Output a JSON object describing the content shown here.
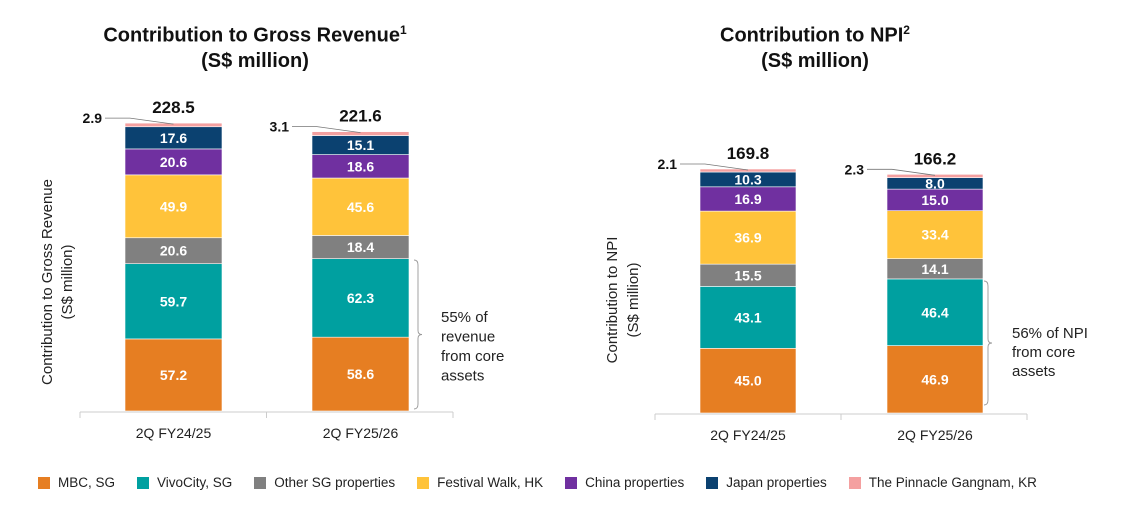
{
  "chart_data": [
    {
      "type": "bar",
      "stacked": true,
      "title": "Contribution to Gross Revenue",
      "title_footnote": "1",
      "subtitle": "(S$ million)",
      "ylabel": [
        "Contribution to Gross Revenue",
        "(S$ million)"
      ],
      "categories": [
        "2Q FY24/25",
        "2Q FY25/26"
      ],
      "totals": [
        "228.5",
        "221.6"
      ],
      "series": [
        {
          "name": "MBC, SG",
          "values": [
            57.2,
            58.6
          ]
        },
        {
          "name": "VivoCity, SG",
          "values": [
            59.7,
            62.3
          ]
        },
        {
          "name": "Other SG properties",
          "values": [
            20.6,
            18.4
          ]
        },
        {
          "name": "Festival Walk, HK",
          "values": [
            49.9,
            45.6
          ]
        },
        {
          "name": "China properties",
          "values": [
            20.6,
            18.6
          ]
        },
        {
          "name": "Japan properties",
          "values": [
            17.6,
            15.1
          ]
        },
        {
          "name": "The Pinnacle Gangnam, KR",
          "values": [
            2.9,
            3.1
          ]
        }
      ],
      "annotation": [
        "55% of",
        "revenue",
        "from core",
        "assets"
      ],
      "grid": false
    },
    {
      "type": "bar",
      "stacked": true,
      "title": "Contribution to NPI",
      "title_footnote": "2",
      "subtitle": "(S$ million)",
      "ylabel": [
        "Contribution to NPI",
        "(S$ million)"
      ],
      "categories": [
        "2Q FY24/25",
        "2Q FY25/26"
      ],
      "totals": [
        "169.8",
        "166.2"
      ],
      "series": [
        {
          "name": "MBC, SG",
          "values": [
            45.0,
            46.9
          ]
        },
        {
          "name": "VivoCity, SG",
          "values": [
            43.1,
            46.4
          ]
        },
        {
          "name": "Other SG properties",
          "values": [
            15.5,
            14.1
          ]
        },
        {
          "name": "Festival Walk, HK",
          "values": [
            36.9,
            33.4
          ]
        },
        {
          "name": "China properties",
          "values": [
            16.9,
            15.0
          ]
        },
        {
          "name": "Japan properties",
          "values": [
            10.3,
            8.0
          ]
        },
        {
          "name": "The Pinnacle Gangnam, KR",
          "values": [
            2.1,
            2.3
          ]
        }
      ],
      "annotation": [
        "56% of NPI",
        "from core",
        "assets"
      ],
      "grid": false
    }
  ],
  "legend": [
    {
      "label": "MBC, SG",
      "color": "#E67E22"
    },
    {
      "label": "VivoCity, SG",
      "color": "#00A0A0"
    },
    {
      "label": "Other SG properties",
      "color": "#808080"
    },
    {
      "label": "Festival Walk, HK",
      "color": "#FFC33A"
    },
    {
      "label": "China properties",
      "color": "#7030A0"
    },
    {
      "label": "Japan properties",
      "color": "#0B4170"
    },
    {
      "label": "The Pinnacle Gangnam, KR",
      "color": "#F4A0A0"
    }
  ]
}
